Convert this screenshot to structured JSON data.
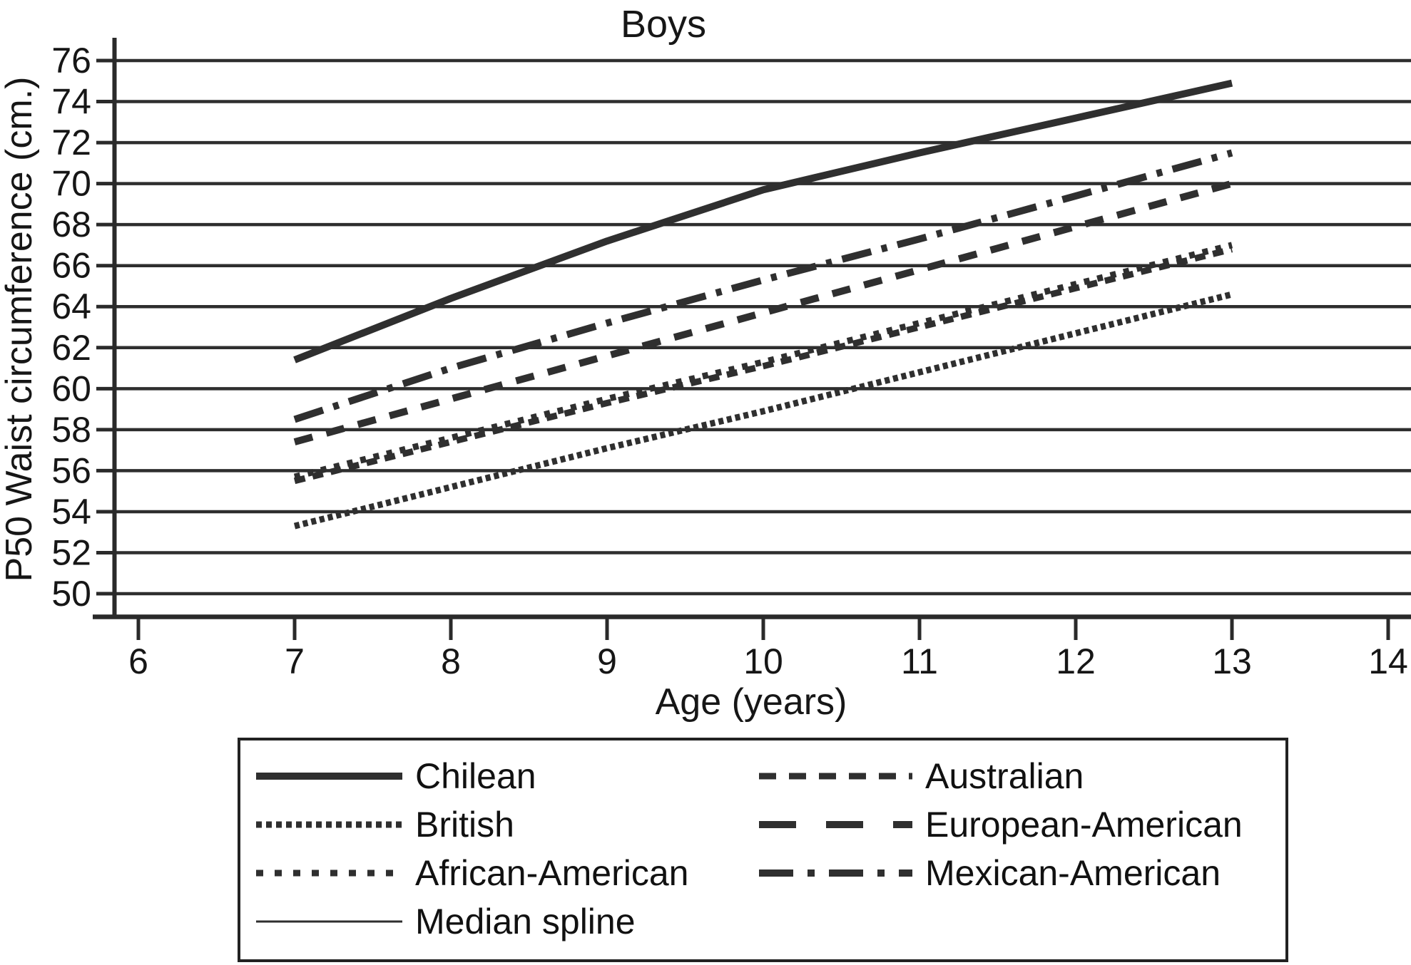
{
  "title": "Boys",
  "axes": {
    "x_label": "Age (years)",
    "y_label": "P50 Waist circumference (cm.)",
    "x_ticks": [
      6,
      7,
      8,
      9,
      10,
      11,
      12,
      13,
      14
    ],
    "y_ticks": [
      76,
      74,
      72,
      70,
      68,
      66,
      64,
      62,
      60,
      58,
      56,
      54,
      52,
      50
    ]
  },
  "chart_data": {
    "type": "line",
    "title": "Boys",
    "xlabel": "Age (years)",
    "ylabel": "P50 Waist circumference (cm.)",
    "x": [
      7,
      8,
      9,
      10,
      11,
      12,
      13
    ],
    "xlim": [
      6,
      14
    ],
    "ylim": [
      50,
      76
    ],
    "grid": "horizontal-only",
    "legend_position": "bottom-box-two-columns",
    "series": [
      {
        "name": "Chilean",
        "style": "solid-thick",
        "values": [
          61.4,
          64.4,
          67.2,
          69.7,
          71.5,
          73.2,
          74.9
        ]
      },
      {
        "name": "British",
        "style": "dense-dotted",
        "values": [
          53.3,
          55.2,
          57.1,
          58.9,
          60.8,
          62.7,
          64.6
        ]
      },
      {
        "name": "African-American",
        "style": "dotted",
        "values": [
          55.7,
          57.6,
          59.5,
          61.3,
          63.2,
          65.1,
          67.0
        ]
      },
      {
        "name": "Median spline",
        "style": "solid-thin",
        "values": []
      },
      {
        "name": "Australian",
        "style": "short-dash",
        "values": [
          55.5,
          57.4,
          59.3,
          61.1,
          63.0,
          64.9,
          66.8
        ]
      },
      {
        "name": "European-American",
        "style": "long-dash",
        "values": [
          57.4,
          59.5,
          61.6,
          63.7,
          65.8,
          67.9,
          70.0
        ]
      },
      {
        "name": "Mexican-American",
        "style": "dash-dot",
        "values": [
          58.5,
          61.0,
          63.2,
          65.3,
          67.3,
          69.4,
          71.5
        ]
      }
    ]
  },
  "legend": {
    "left": [
      {
        "label": "Chilean",
        "style": "solid-thick"
      },
      {
        "label": "British",
        "style": "dense-dotted"
      },
      {
        "label": "African-American",
        "style": "dotted"
      },
      {
        "label": "Median spline",
        "style": "solid-thin"
      }
    ],
    "right": [
      {
        "label": "Australian",
        "style": "short-dash"
      },
      {
        "label": "European-American",
        "style": "long-dash"
      },
      {
        "label": "Mexican-American",
        "style": "dash-dot"
      }
    ]
  },
  "colors": {
    "line": "#2f2f2f",
    "grid": "#2e2e2e",
    "axis": "#2a2a2a",
    "text": "#161616",
    "background": "#ffffff"
  }
}
